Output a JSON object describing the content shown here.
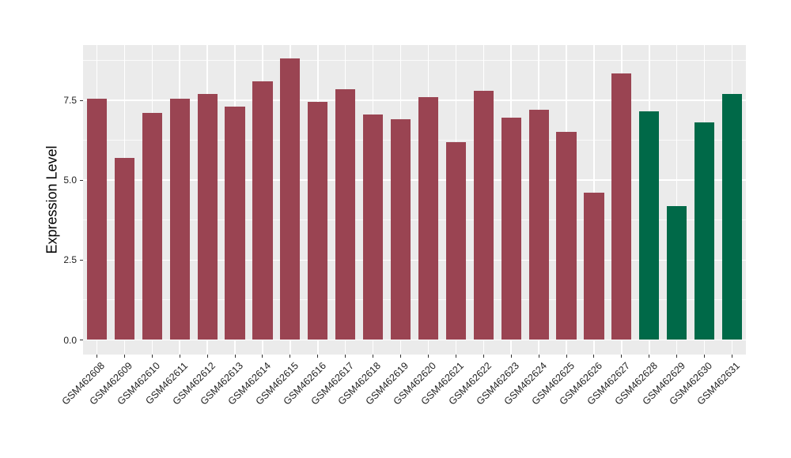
{
  "chart_data": {
    "type": "bar",
    "title": "",
    "xlabel": "",
    "ylabel": "Expression Level",
    "categories": [
      "GSM462608",
      "GSM462609",
      "GSM462610",
      "GSM462611",
      "GSM462612",
      "GSM462613",
      "GSM462614",
      "GSM462615",
      "GSM462616",
      "GSM462617",
      "GSM462618",
      "GSM462619",
      "GSM462620",
      "GSM462621",
      "GSM462622",
      "GSM462623",
      "GSM462624",
      "GSM462625",
      "GSM462626",
      "GSM462627",
      "GSM462628",
      "GSM462629",
      "GSM462630",
      "GSM462631"
    ],
    "values": [
      7.55,
      5.7,
      7.1,
      7.55,
      7.7,
      7.3,
      8.1,
      8.8,
      7.45,
      7.85,
      7.05,
      6.9,
      7.6,
      6.2,
      7.8,
      6.95,
      7.2,
      6.5,
      4.6,
      8.35,
      7.15,
      4.2,
      6.8,
      7.7
    ],
    "bar_colors": [
      "#9A4452",
      "#9A4452",
      "#9A4452",
      "#9A4452",
      "#9A4452",
      "#9A4452",
      "#9A4452",
      "#9A4452",
      "#9A4452",
      "#9A4452",
      "#9A4452",
      "#9A4452",
      "#9A4452",
      "#9A4452",
      "#9A4452",
      "#9A4452",
      "#9A4452",
      "#9A4452",
      "#9A4452",
      "#9A4452",
      "#006948",
      "#006948",
      "#006948",
      "#006948"
    ],
    "yticks": [
      0,
      2.5,
      5,
      7.5
    ],
    "ytick_labels": [
      "0.0",
      "2.5",
      "5.0",
      "7.5"
    ],
    "yticks_minor": [
      1.25,
      3.75,
      6.25,
      8.75
    ],
    "ylim": [
      0,
      9.23
    ],
    "grid": true,
    "legend_position": "none",
    "colors": {
      "group_main": "#9A4452",
      "group_last4": "#006948",
      "panel_bg": "#EBEBEB",
      "grid": "#FFFFFF",
      "tick": "#333333",
      "text": "#1f1f1f"
    }
  }
}
